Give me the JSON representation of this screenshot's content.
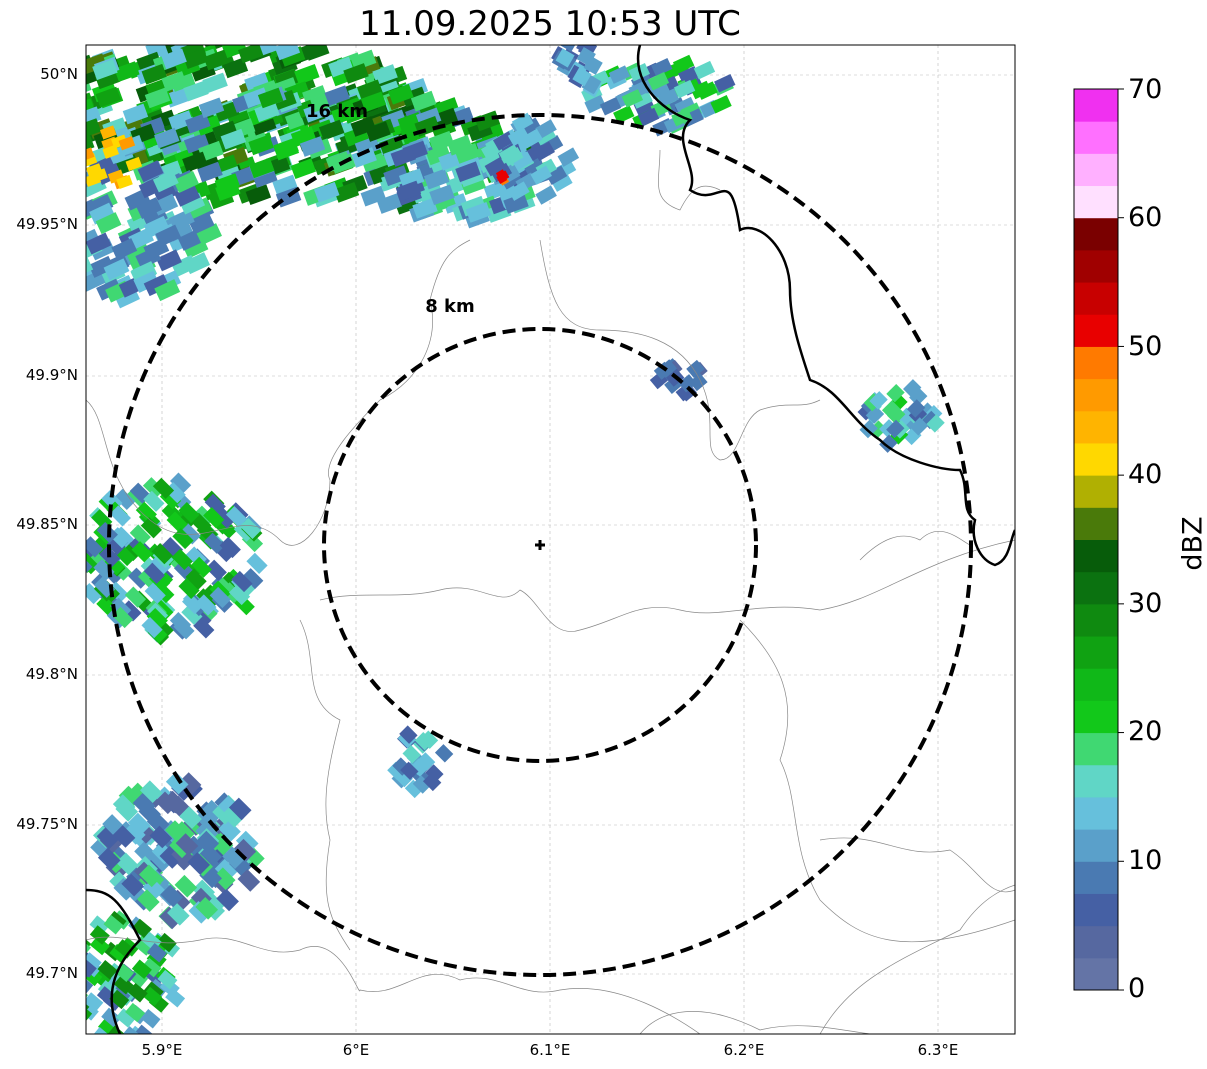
{
  "title": "11.09.2025 10:53 UTC",
  "y_ticks": [
    "50°N",
    "49.95°N",
    "49.9°N",
    "49.85°N",
    "49.8°N",
    "49.75°N",
    "49.7°N"
  ],
  "x_ticks": [
    "5.9°E",
    "6°E",
    "6.1°E",
    "6.2°E",
    "6.3°E"
  ],
  "range_rings": [
    {
      "label": "8 km",
      "radius_km": 8
    },
    {
      "label": "16 km",
      "radius_km": 16
    }
  ],
  "radar_site": {
    "lon": 6.096,
    "lat": 49.843
  },
  "extent": {
    "lon": [
      5.861,
      6.34
    ],
    "lat": [
      49.68,
      50.01
    ]
  },
  "colorbar": {
    "unit": "dBZ",
    "ticks": [
      "0",
      "10",
      "20",
      "30",
      "40",
      "50",
      "60",
      "70"
    ],
    "min": 0,
    "max": 70,
    "step": 2.5,
    "colors": [
      "#6474a6",
      "#5668a0",
      "#4560a4",
      "#4a7ab2",
      "#5aa0ca",
      "#66c0dc",
      "#60d6c6",
      "#40d872",
      "#12c81a",
      "#10b818",
      "#10a212",
      "#0f8a10",
      "#0b7210",
      "#075c0a",
      "#4a7a0a",
      "#b0b002",
      "#ffd800",
      "#ffb400",
      "#ff9a00",
      "#ff7a00",
      "#e80000",
      "#c80000",
      "#a00000",
      "#7a0000",
      "#ffe0ff",
      "#ffb0ff",
      "#ff70ff",
      "#f030f0"
    ]
  }
}
